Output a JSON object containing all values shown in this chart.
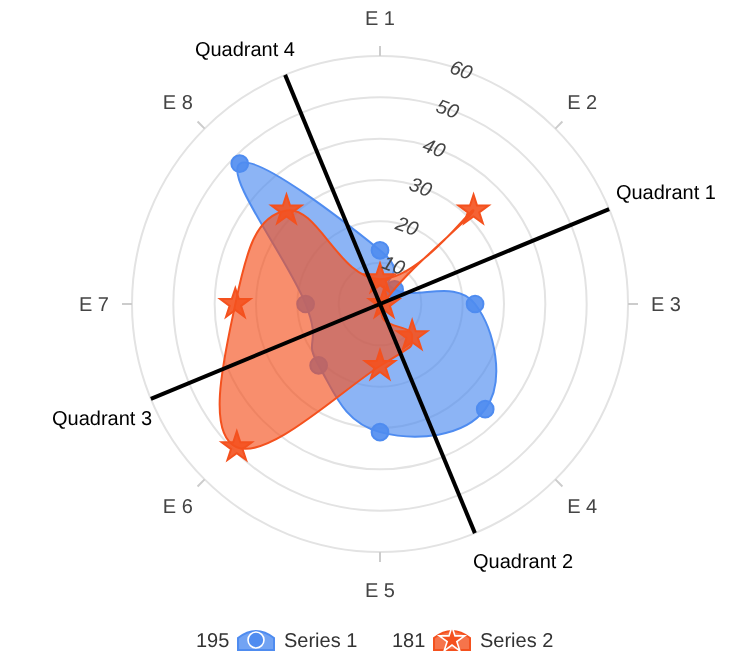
{
  "chart_data": {
    "type": "radar",
    "categories": [
      "E 1",
      "E 2",
      "E 3",
      "E 4",
      "E 5",
      "E 6",
      "E 7",
      "E 8"
    ],
    "ylim": [
      0,
      60
    ],
    "yticks": [
      10,
      20,
      30,
      40,
      50,
      60
    ],
    "grid": true,
    "legend": "bottom",
    "totals": [
      "195",
      "181"
    ],
    "series": [
      {
        "name": "Series 1",
        "color": "#4f8cf0",
        "marker": "circle",
        "values": [
          13,
          5,
          23,
          36,
          31,
          21,
          18,
          48
        ]
      },
      {
        "name": "Series 2",
        "color": "#f4511e",
        "marker": "star",
        "values": [
          6,
          32,
          1,
          11,
          15,
          49,
          35,
          32
        ]
      }
    ],
    "annotations": [
      "Quadrant 1",
      "Quadrant 2",
      "Quadrant 3",
      "Quadrant 4"
    ]
  }
}
